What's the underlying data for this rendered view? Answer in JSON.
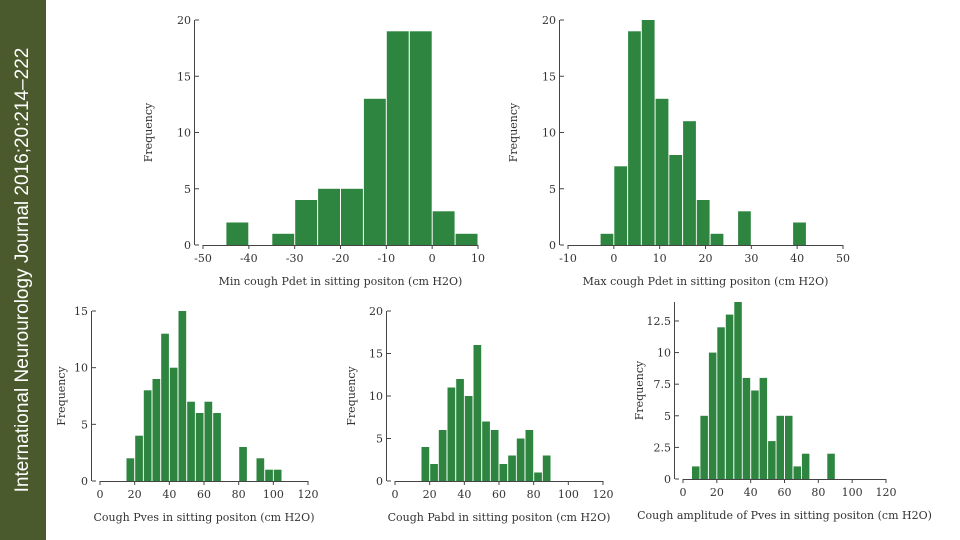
{
  "side_banner": {
    "text": "International Neurourology Journal 2016;20:214–222"
  },
  "colors": {
    "bar": "#2e8540",
    "sidebar": "#4a5a2c",
    "axis": "#444444"
  },
  "chart_data": [
    {
      "type": "bar",
      "title": "",
      "xlabel": "Min cough Pdet in sitting positon (cm H2O)",
      "ylabel": "Frequency",
      "xlim": [
        -50,
        10
      ],
      "ylim": [
        0,
        20
      ],
      "xticks": [
        -50,
        -40,
        -30,
        -20,
        -10,
        0,
        10
      ],
      "xtick_labels": [
        "-50",
        "-40",
        "-30",
        "-20",
        "-10",
        "0",
        "10"
      ],
      "yticks": [
        0,
        5,
        10,
        15,
        20
      ],
      "ytick_labels": [
        "0",
        "5",
        "10",
        "15",
        "20"
      ],
      "bins": [
        [
          -45,
          -40
        ],
        [
          -40,
          -35
        ],
        [
          -35,
          -30
        ],
        [
          -30,
          -25
        ],
        [
          -25,
          -20
        ],
        [
          -20,
          -15
        ],
        [
          -15,
          -10
        ],
        [
          -10,
          -5
        ],
        [
          -5,
          0
        ],
        [
          0,
          5
        ],
        [
          5,
          10
        ]
      ],
      "values": [
        2,
        0,
        1,
        4,
        5,
        5,
        13,
        19,
        19,
        3,
        1
      ]
    },
    {
      "type": "bar",
      "title": "",
      "xlabel": "Max cough Pdet in sitting positon (cm H2O)",
      "ylabel": "Frequency",
      "xlim": [
        -10,
        50
      ],
      "ylim": [
        0,
        20
      ],
      "xticks": [
        -10,
        0,
        10,
        20,
        30,
        40,
        50
      ],
      "xtick_labels": [
        "-10",
        "0",
        "10",
        "20",
        "30",
        "40",
        "50"
      ],
      "yticks": [
        0,
        5,
        10,
        15,
        20
      ],
      "ytick_labels": [
        "0",
        "5",
        "10",
        "15",
        "20"
      ],
      "bins": [
        [
          -3,
          0
        ],
        [
          0,
          3
        ],
        [
          3,
          6
        ],
        [
          6,
          9
        ],
        [
          9,
          12
        ],
        [
          12,
          15
        ],
        [
          15,
          18
        ],
        [
          18,
          21
        ],
        [
          21,
          24
        ],
        [
          24,
          27
        ],
        [
          27,
          30
        ],
        [
          30,
          33
        ],
        [
          33,
          36
        ],
        [
          36,
          39
        ],
        [
          39,
          42
        ],
        [
          42,
          45
        ]
      ],
      "values": [
        1,
        7,
        19,
        20,
        13,
        8,
        11,
        4,
        1,
        0,
        3,
        0,
        0,
        0,
        2,
        0
      ]
    },
    {
      "type": "bar",
      "title": "",
      "xlabel": "Cough Pves in sitting positon (cm H2O)",
      "ylabel": "Frequency",
      "xlim": [
        0,
        120
      ],
      "ylim": [
        0,
        15
      ],
      "xticks": [
        0,
        20,
        40,
        60,
        80,
        100,
        120
      ],
      "xtick_labels": [
        "0",
        "20",
        "40",
        "60",
        "80",
        "100",
        "120"
      ],
      "yticks": [
        0,
        5,
        10,
        15
      ],
      "ytick_labels": [
        "0",
        "5",
        "10",
        "15"
      ],
      "bins": [
        [
          15,
          20
        ],
        [
          20,
          25
        ],
        [
          25,
          30
        ],
        [
          30,
          35
        ],
        [
          35,
          40
        ],
        [
          40,
          45
        ],
        [
          45,
          50
        ],
        [
          50,
          55
        ],
        [
          55,
          60
        ],
        [
          60,
          65
        ],
        [
          65,
          70
        ],
        [
          70,
          75
        ],
        [
          75,
          80
        ],
        [
          80,
          85
        ],
        [
          85,
          90
        ],
        [
          90,
          95
        ],
        [
          95,
          100
        ],
        [
          100,
          105
        ],
        [
          105,
          110
        ],
        [
          110,
          115
        ]
      ],
      "values": [
        2,
        4,
        8,
        9,
        13,
        10,
        15,
        7,
        6,
        7,
        6,
        0,
        0,
        3,
        0,
        2,
        1,
        1,
        0,
        0
      ]
    },
    {
      "type": "bar",
      "title": "",
      "xlabel": "Cough Pabd in sitting positon (cm H2O)",
      "ylabel": "Frequency",
      "xlim": [
        0,
        120
      ],
      "ylim": [
        0,
        20
      ],
      "xticks": [
        0,
        20,
        40,
        60,
        80,
        100,
        120
      ],
      "xtick_labels": [
        "0",
        "20",
        "40",
        "60",
        "80",
        "100",
        "120"
      ],
      "yticks": [
        0,
        5,
        10,
        15,
        20
      ],
      "ytick_labels": [
        "0",
        "5",
        "10",
        "15",
        "20"
      ],
      "bins": [
        [
          15,
          20
        ],
        [
          20,
          25
        ],
        [
          25,
          30
        ],
        [
          30,
          35
        ],
        [
          35,
          40
        ],
        [
          40,
          45
        ],
        [
          45,
          50
        ],
        [
          50,
          55
        ],
        [
          55,
          60
        ],
        [
          60,
          65
        ],
        [
          65,
          70
        ],
        [
          70,
          75
        ],
        [
          75,
          80
        ],
        [
          80,
          85
        ],
        [
          85,
          90
        ],
        [
          90,
          95
        ],
        [
          95,
          100
        ],
        [
          100,
          105
        ],
        [
          105,
          110
        ]
      ],
      "values": [
        4,
        2,
        6,
        11,
        12,
        10,
        16,
        7,
        6,
        2,
        3,
        5,
        6,
        1,
        3,
        0,
        0,
        0,
        0
      ]
    },
    {
      "type": "bar",
      "title": "",
      "xlabel": "Cough amplitude of Pves in sitting positon (cm H2O)",
      "ylabel": "Frequency",
      "xlim": [
        0,
        120
      ],
      "ylim": [
        0,
        14
      ],
      "xticks": [
        0,
        20,
        40,
        60,
        80,
        100,
        120
      ],
      "xtick_labels": [
        "0",
        "20",
        "40",
        "60",
        "80",
        "100",
        "120"
      ],
      "yticks": [
        0,
        2.5,
        5,
        7.5,
        10,
        12.5
      ],
      "ytick_labels": [
        "0",
        "2.5",
        "5",
        "7.5",
        "10",
        "12.5"
      ],
      "bins": [
        [
          5,
          10
        ],
        [
          10,
          15
        ],
        [
          15,
          20
        ],
        [
          20,
          25
        ],
        [
          25,
          30
        ],
        [
          30,
          35
        ],
        [
          35,
          40
        ],
        [
          40,
          45
        ],
        [
          45,
          50
        ],
        [
          50,
          55
        ],
        [
          55,
          60
        ],
        [
          60,
          65
        ],
        [
          65,
          70
        ],
        [
          70,
          75
        ],
        [
          75,
          80
        ],
        [
          80,
          85
        ],
        [
          85,
          90
        ],
        [
          90,
          95
        ],
        [
          95,
          100
        ],
        [
          100,
          105
        ]
      ],
      "values": [
        1,
        5,
        10,
        12,
        13,
        14,
        8,
        7,
        8,
        3,
        5,
        5,
        1,
        2,
        0,
        0,
        2,
        0,
        0,
        0
      ]
    }
  ]
}
